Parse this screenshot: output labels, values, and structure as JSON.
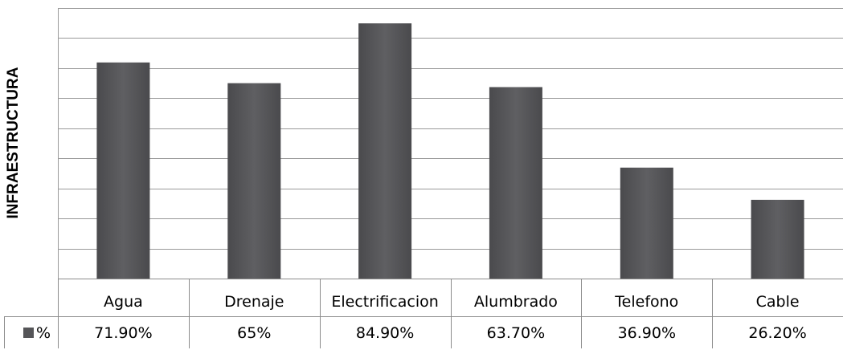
{
  "chart_data": {
    "type": "bar",
    "title": "",
    "ylabel": "INFRAESTRUCTURA",
    "xlabel": "",
    "categories": [
      "Agua",
      "Drenaje",
      "Electrificacion",
      "Alumbrado",
      "Telefono",
      "Cable"
    ],
    "series": [
      {
        "name": "%",
        "values": [
          71.9,
          65,
          84.9,
          63.7,
          36.9,
          26.2
        ],
        "labels": [
          "71.90%",
          "65%",
          "84.90%",
          "63.70%",
          "36.90%",
          "26.20%"
        ],
        "color": "#555558"
      }
    ],
    "ylim": [
      0,
      90
    ],
    "grid": true,
    "y_tick_labels_shown": false,
    "legend": "data-table",
    "data_table": true
  }
}
